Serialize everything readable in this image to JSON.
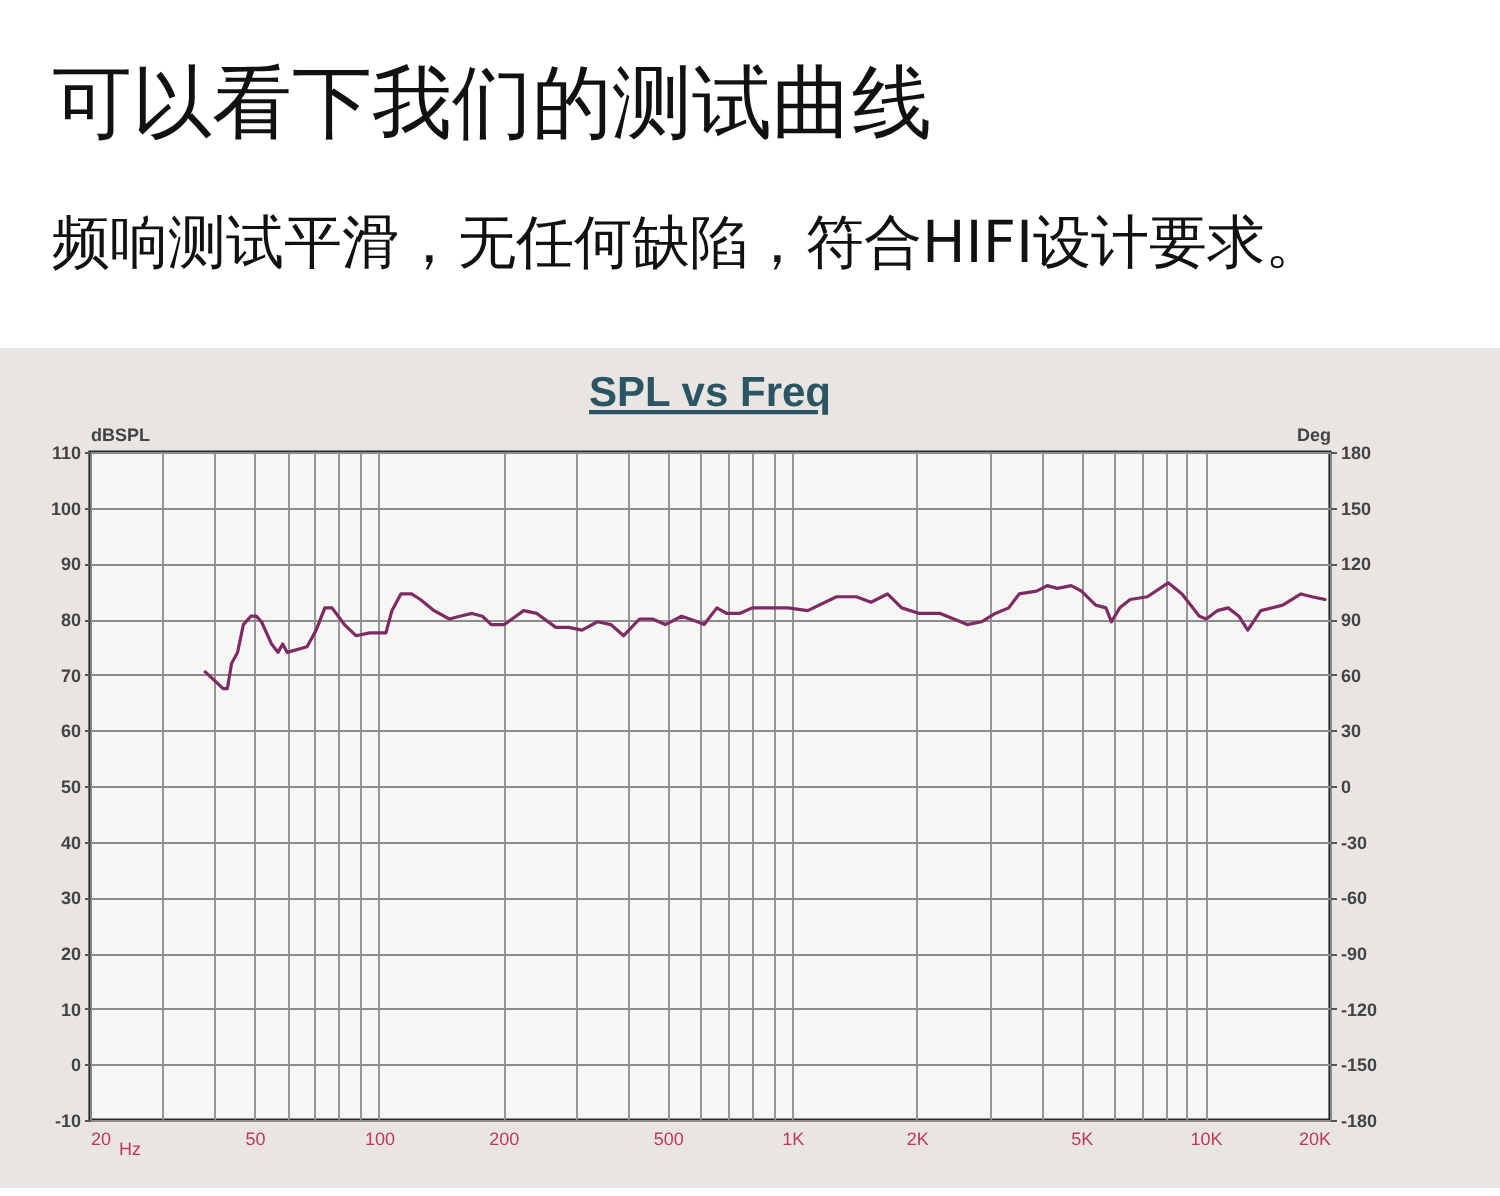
{
  "chart_data": {
    "type": "line",
    "title": "可以看下我们的测试曲线",
    "subtitle": "频响测试平滑，无任何缺陷，符合HIFI设计要求。",
    "annotations": [
      "SPL vs Freq"
    ],
    "xlabel": "Hz",
    "ylabel": "dBSPL",
    "y2label": "Deg",
    "x": [
      38,
      42,
      43,
      44,
      45.5,
      47,
      49,
      50.5,
      52,
      55,
      57,
      58.5,
      60,
      67,
      70.5,
      74,
      77,
      82.5,
      88,
      95,
      104,
      107.5,
      113,
      120,
      126,
      136,
      148,
      157,
      168,
      178,
      187,
      201,
      224,
      241,
      268,
      288,
      310,
      338,
      364,
      391,
      427,
      459,
      493,
      540,
      590,
      612,
      657,
      694,
      746,
      800,
      876,
      976,
      1090,
      1280,
      1430,
      1550,
      1700,
      1840,
      2030,
      2280,
      2460,
      2650,
      2870,
      3100,
      3340,
      3540,
      3900,
      4140,
      4380,
      4730,
      5010,
      5420,
      5740,
      5920,
      6200,
      6570,
      7230,
      8120,
      8770,
      9660,
      10040,
      10670,
      11340,
      12040,
      12650,
      13600,
      15370,
      17010,
      18080,
      19450
    ],
    "values": [
      70.5,
      67.5,
      67.5,
      72,
      74,
      79,
      80.5,
      80.5,
      79.5,
      75.5,
      74,
      75.5,
      74,
      75,
      78,
      82,
      82,
      79,
      77,
      77.5,
      77.5,
      81.5,
      84.5,
      84.5,
      83.5,
      81.5,
      80,
      80.5,
      81,
      80.5,
      79,
      79,
      81.5,
      81,
      78.5,
      78.5,
      78,
      79.5,
      79,
      77,
      80,
      80,
      79,
      80.5,
      79.5,
      79,
      82,
      81,
      81,
      82,
      82,
      82,
      81.5,
      84,
      84,
      83,
      84.5,
      82,
      81,
      81,
      80,
      79,
      79.5,
      81,
      82,
      84.5,
      85,
      86,
      85.5,
      86,
      85,
      82.5,
      82,
      79.5,
      82,
      83.5,
      84,
      86.5,
      84.5,
      80.5,
      80,
      81.5,
      82,
      80.5,
      78,
      81.5,
      82.5,
      84.5,
      84,
      83.5
    ],
    "color": "#7d2b62",
    "xlim": [
      20,
      20000
    ],
    "xticks": [
      20,
      {
        "value": 30,
        "label": null
      },
      {
        "value": 40,
        "label": null
      },
      50,
      {
        "value": 60,
        "label": null
      },
      {
        "value": 70,
        "label": null
      },
      {
        "value": 80,
        "label": null
      },
      {
        "value": 90,
        "label": null
      },
      100,
      200,
      {
        "value": 300,
        "label": null
      },
      {
        "value": 400,
        "label": null
      },
      500,
      {
        "value": 600,
        "label": null
      },
      {
        "value": 700,
        "label": null
      },
      {
        "value": 800,
        "label": null
      },
      {
        "value": 900,
        "label": null
      },
      {
        "value": 1000,
        "label": "1K"
      },
      {
        "value": 2000,
        "label": "2K"
      },
      {
        "value": 3000,
        "label": null
      },
      {
        "value": 4000,
        "label": null
      },
      {
        "value": 5000,
        "label": "5K"
      },
      {
        "value": 6000,
        "label": null
      },
      {
        "value": 7000,
        "label": null
      },
      {
        "value": 8000,
        "label": null
      },
      {
        "value": 9000,
        "label": null
      },
      {
        "value": 10000,
        "label": "10K"
      },
      {
        "value": 20000,
        "label": "20K"
      }
    ],
    "ylim": [
      -10,
      110
    ],
    "yticks": [
      -10,
      0,
      10,
      20,
      30,
      40,
      50,
      60,
      70,
      80,
      90,
      100,
      110
    ],
    "y2lim": [
      -180,
      180
    ],
    "y2ticks": [
      -180,
      -150,
      -120,
      -90,
      -60,
      -30,
      0,
      30,
      60,
      90,
      120,
      150,
      180
    ],
    "log": "x",
    "grid": true
  }
}
